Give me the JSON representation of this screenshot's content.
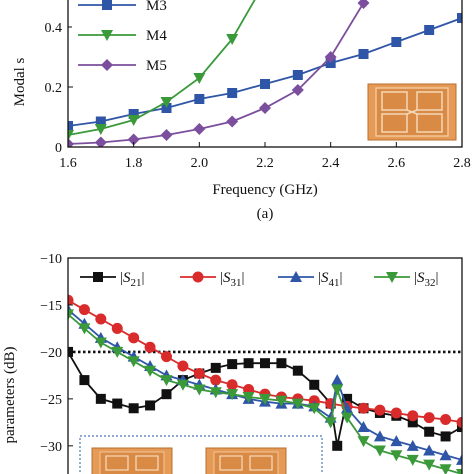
{
  "chart_data": [
    {
      "type": "line",
      "title": "",
      "xlabel": "Frequency (GHz)",
      "ylabel": "Modal s",
      "caption": "(a)",
      "xlim": [
        1.6,
        2.8
      ],
      "ylim": [
        0,
        0.5
      ],
      "x_ticks": [
        "1.6",
        "1.8",
        "2.0",
        "2.2",
        "2.4",
        "2.6",
        "2.8"
      ],
      "y_ticks": [
        "0",
        "0.2",
        "0.4"
      ],
      "legend_position": "top-left",
      "series": [
        {
          "name": "M3",
          "color": "#2f56a6",
          "marker": "square",
          "x": [
            1.6,
            1.7,
            1.8,
            1.9,
            2.0,
            2.1,
            2.2,
            2.3,
            2.4,
            2.5,
            2.6,
            2.7,
            2.8
          ],
          "y": [
            0.07,
            0.085,
            0.11,
            0.13,
            0.16,
            0.18,
            0.21,
            0.24,
            0.28,
            0.31,
            0.35,
            0.39,
            0.43
          ]
        },
        {
          "name": "M4",
          "color": "#3a9a3a",
          "marker": "triangle-down",
          "x": [
            1.6,
            1.7,
            1.8,
            1.9,
            2.0,
            2.1,
            2.2
          ],
          "y": [
            0.04,
            0.06,
            0.09,
            0.15,
            0.23,
            0.36,
            0.55
          ]
        },
        {
          "name": "M5",
          "color": "#7b4f9d",
          "marker": "diamond",
          "x": [
            1.6,
            1.7,
            1.8,
            1.9,
            2.0,
            2.1,
            2.2,
            2.3,
            2.4,
            2.5,
            2.6
          ],
          "y": [
            0.01,
            0.015,
            0.025,
            0.04,
            0.06,
            0.085,
            0.13,
            0.19,
            0.3,
            0.48,
            0.75
          ]
        }
      ]
    },
    {
      "type": "line",
      "title": "",
      "xlabel": "",
      "ylabel": "parameters (dB)",
      "xlim": [
        1.6,
        2.8
      ],
      "ylim": [
        -33,
        -10
      ],
      "y_ticks": [
        "−10",
        "−15",
        "−20",
        "−25",
        "−30"
      ],
      "reference_line": {
        "y": -20,
        "style": "dotted"
      },
      "legend_position": "top",
      "series": [
        {
          "name": "S21",
          "label_main": "S",
          "label_sub": "21",
          "color": "#111111",
          "marker": "square",
          "x": [
            1.6,
            1.65,
            1.7,
            1.75,
            1.8,
            1.85,
            1.9,
            1.95,
            2.0,
            2.05,
            2.1,
            2.15,
            2.2,
            2.25,
            2.3,
            2.35,
            2.4,
            2.42,
            2.45,
            2.5,
            2.55,
            2.6,
            2.65,
            2.7,
            2.75,
            2.8
          ],
          "y": [
            -20,
            -23,
            -25,
            -25.5,
            -26,
            -25.7,
            -24.5,
            -23,
            -22.3,
            -21.7,
            -21.3,
            -21.2,
            -21.2,
            -21.2,
            -22,
            -23.5,
            -25.5,
            -30,
            -25,
            -26,
            -26.5,
            -26.8,
            -27.5,
            -28.5,
            -29,
            -28
          ]
        },
        {
          "name": "S31",
          "label_main": "S",
          "label_sub": "31",
          "color": "#d92b2b",
          "marker": "circle",
          "x": [
            1.6,
            1.65,
            1.7,
            1.75,
            1.8,
            1.85,
            1.9,
            1.95,
            2.0,
            2.05,
            2.1,
            2.15,
            2.2,
            2.25,
            2.3,
            2.35,
            2.4,
            2.45,
            2.5,
            2.55,
            2.6,
            2.65,
            2.7,
            2.75,
            2.8
          ],
          "y": [
            -14.5,
            -15.5,
            -16.5,
            -17.5,
            -18.5,
            -19.5,
            -20.5,
            -21.5,
            -22.3,
            -23,
            -23.5,
            -24,
            -24.5,
            -24.8,
            -25,
            -25.2,
            -25.5,
            -25.8,
            -26,
            -26.2,
            -26.5,
            -26.8,
            -27,
            -27.2,
            -27.5
          ]
        },
        {
          "name": "S41",
          "label_main": "S",
          "label_sub": "41",
          "color": "#2f56a6",
          "marker": "triangle-up",
          "x": [
            1.6,
            1.65,
            1.7,
            1.75,
            1.8,
            1.85,
            1.9,
            1.95,
            2.0,
            2.05,
            2.1,
            2.15,
            2.2,
            2.25,
            2.3,
            2.35,
            2.4,
            2.42,
            2.45,
            2.5,
            2.55,
            2.6,
            2.65,
            2.7,
            2.75,
            2.8
          ],
          "y": [
            -15.5,
            -17,
            -18.5,
            -19.5,
            -20.5,
            -21.5,
            -22.5,
            -23,
            -23.5,
            -24,
            -24.5,
            -25,
            -25.3,
            -25.5,
            -25.5,
            -25.8,
            -27,
            -23,
            -26,
            -28,
            -29,
            -29.5,
            -30,
            -30.5,
            -31,
            -31.5
          ]
        },
        {
          "name": "S32",
          "label_main": "S",
          "label_sub": "32",
          "color": "#3a9a3a",
          "marker": "triangle-down",
          "x": [
            1.6,
            1.65,
            1.7,
            1.75,
            1.8,
            1.85,
            1.9,
            1.95,
            2.0,
            2.05,
            2.1,
            2.15,
            2.2,
            2.25,
            2.3,
            2.35,
            2.4,
            2.42,
            2.45,
            2.5,
            2.55,
            2.6,
            2.65,
            2.7,
            2.75,
            2.8
          ],
          "y": [
            -16,
            -17.5,
            -19,
            -20,
            -21,
            -22,
            -23,
            -23.5,
            -24,
            -24.3,
            -24.5,
            -24.8,
            -25,
            -25.2,
            -25.5,
            -26,
            -27.5,
            -24,
            -27,
            -29.5,
            -30.5,
            -31,
            -31.5,
            -32,
            -32.5,
            -33
          ]
        }
      ]
    }
  ]
}
